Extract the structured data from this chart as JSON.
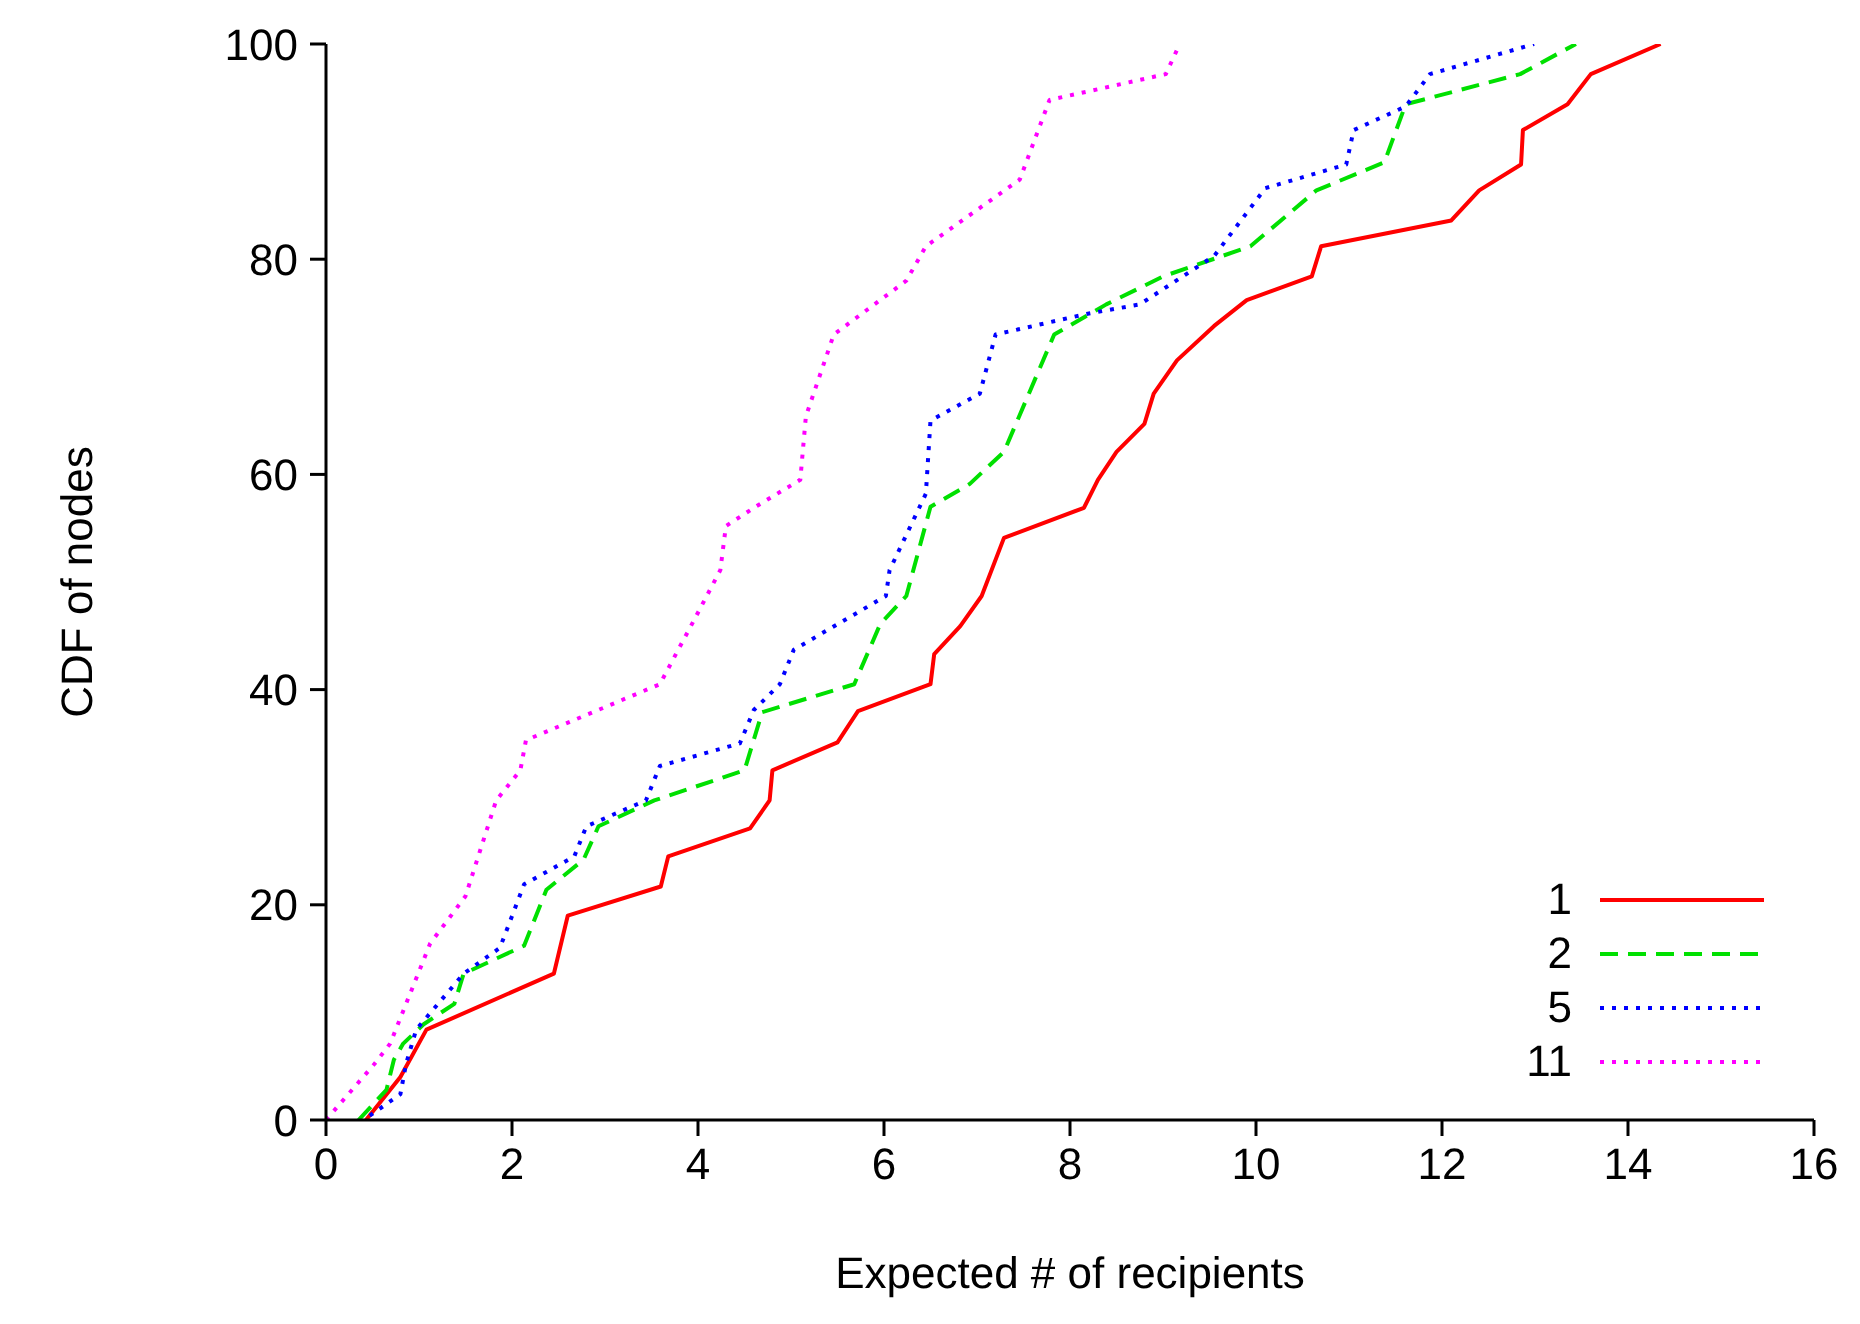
{
  "chart_data": {
    "type": "line",
    "xlabel": "Expected # of recipients",
    "ylabel": "CDF of nodes",
    "xlim": [
      0,
      16
    ],
    "xticks": [
      0,
      2,
      4,
      6,
      8,
      10,
      12,
      14,
      16
    ],
    "ylim": [
      0,
      100
    ],
    "yticks": [
      0,
      20,
      40,
      60,
      80,
      100
    ],
    "grid": false,
    "legend": "bottom right",
    "marker": "none",
    "series": [
      {
        "name": "1",
        "color": "#ff0000",
        "line_style": "solid",
        "x": [
          0.43,
          0.8,
          1.08,
          2.45,
          2.6,
          3.6,
          3.68,
          4.56,
          4.77,
          4.8,
          5.5,
          5.72,
          6.5,
          6.54,
          6.82,
          7.05,
          7.29,
          8.15,
          8.3,
          8.5,
          8.8,
          8.9,
          9.15,
          9.55,
          9.9,
          10.6,
          10.7,
          12.1,
          12.4,
          12.85,
          12.87,
          13.35,
          13.6,
          14.35
        ],
        "values": [
          0,
          4,
          8.4,
          13.6,
          19,
          21.7,
          24.5,
          27.1,
          29.7,
          32.5,
          35.1,
          38,
          40.5,
          43.3,
          45.9,
          48.7,
          54.1,
          56.9,
          59.5,
          62.1,
          64.7,
          67.5,
          70.6,
          73.8,
          76.2,
          78.4,
          81.2,
          83.6,
          86.4,
          88.8,
          92,
          94.4,
          97.2,
          100
        ]
      },
      {
        "name": "2",
        "color": "#00e000",
        "line_style": "dashed",
        "x": [
          0.35,
          0.65,
          0.73,
          0.83,
          1.05,
          1.38,
          1.48,
          2.13,
          2.37,
          2.77,
          2.93,
          3.53,
          4.5,
          4.69,
          5.68,
          5.96,
          6.24,
          6.5,
          6.92,
          7.29,
          7.83,
          8.39,
          9.0,
          9.94,
          10.65,
          11.38,
          11.61,
          12.84,
          13.44
        ],
        "values": [
          0,
          2.8,
          5.6,
          7.1,
          8.9,
          10.8,
          13.6,
          16.2,
          21.4,
          24.2,
          27.3,
          29.7,
          32.5,
          37.9,
          40.5,
          46.1,
          48.7,
          57,
          59.1,
          62.1,
          73,
          75.8,
          78.4,
          81.2,
          86.4,
          89,
          94.4,
          97.2,
          100
        ]
      },
      {
        "name": "5",
        "color": "#0000ff",
        "line_style": "dotted",
        "x": [
          0.47,
          0.8,
          0.86,
          0.97,
          1.48,
          1.87,
          2.13,
          2.67,
          2.8,
          3.44,
          3.59,
          4.45,
          4.6,
          4.88,
          5.03,
          6.02,
          6.06,
          6.45,
          6.5,
          7.03,
          7.2,
          8.17,
          8.75,
          9.55,
          10.1,
          10.97,
          11.05,
          11.61,
          11.87,
          12.99
        ],
        "values": [
          0.4,
          2.4,
          5.2,
          8.4,
          13.6,
          16,
          21.9,
          24.5,
          27.3,
          29.7,
          32.9,
          35,
          38.1,
          40.5,
          43.7,
          48.7,
          51.1,
          58.2,
          65,
          67.5,
          73,
          74.9,
          75.8,
          80.3,
          86.6,
          88.8,
          92,
          94.2,
          97.2,
          100
        ]
      },
      {
        "name": "11",
        "color": "#ff00ff",
        "line_style": "dotted",
        "x": [
          0,
          0.52,
          0.69,
          1.12,
          1.5,
          1.83,
          2.09,
          2.15,
          3.59,
          3.96,
          4.24,
          4.3,
          4.62,
          5.1,
          5.16,
          5.46,
          6.24,
          6.45,
          7.46,
          7.78,
          9.03,
          9.18
        ],
        "values": [
          0,
          5.2,
          7.1,
          16.4,
          20.8,
          29.7,
          32.5,
          35.3,
          40.5,
          46.5,
          51.1,
          55.2,
          57,
          59.5,
          65.4,
          73,
          78,
          81.2,
          87.4,
          94.8,
          97.2,
          100
        ]
      }
    ]
  }
}
